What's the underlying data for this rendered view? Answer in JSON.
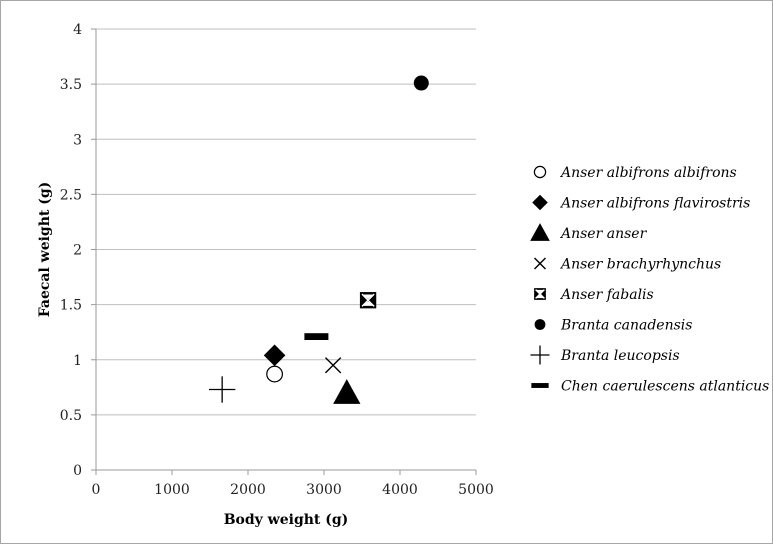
{
  "chart_data": {
    "type": "scatter",
    "xlabel": "Body weight (g)",
    "ylabel": "Faecal weight (g)",
    "xlim": [
      0,
      5000
    ],
    "ylim": [
      0,
      4
    ],
    "x_ticks": [
      "0",
      "1000",
      "2000",
      "3000",
      "4000",
      "5000"
    ],
    "y_ticks": [
      "0",
      "0.5",
      "1",
      "1.5",
      "2",
      "2.5",
      "3",
      "3.5",
      "4"
    ],
    "grid": "horizontal",
    "legend_position": "right",
    "series": [
      {
        "name": "Anser albifrons albifrons",
        "marker": "open-circle",
        "points": [
          [
            2350,
            0.87
          ]
        ]
      },
      {
        "name": "Anser albifrons flavirostris",
        "marker": "diamond",
        "points": [
          [
            2350,
            1.04
          ]
        ]
      },
      {
        "name": "Anser anser",
        "marker": "triangle",
        "points": [
          [
            3300,
            0.7
          ]
        ]
      },
      {
        "name": "Anser brachyrhynchus",
        "marker": "x",
        "points": [
          [
            3120,
            0.95
          ]
        ]
      },
      {
        "name": "Anser fabalis",
        "marker": "box-x",
        "points": [
          [
            3580,
            1.54
          ]
        ]
      },
      {
        "name": "Branta canadensis",
        "marker": "filled-circle",
        "points": [
          [
            4280,
            3.51
          ]
        ]
      },
      {
        "name": "Branta leucopsis",
        "marker": "plus",
        "points": [
          [
            1660,
            0.73
          ]
        ]
      },
      {
        "name": "Chen caerulescens atlanticus",
        "marker": "dash",
        "points": [
          [
            2900,
            1.21
          ]
        ]
      }
    ]
  }
}
